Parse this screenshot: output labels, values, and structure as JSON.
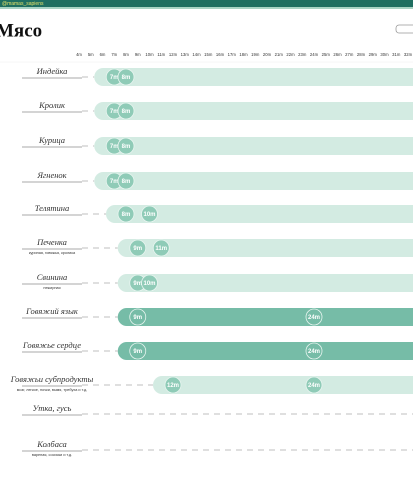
{
  "header": {
    "brand": "@mamas_sapiens",
    "title": "Мясо"
  },
  "axis": {
    "ticks": [
      {
        "value": 4,
        "label": "4m"
      },
      {
        "value": 5,
        "label": "5m"
      },
      {
        "value": 6,
        "label": "6m"
      },
      {
        "value": 7,
        "label": "7m"
      },
      {
        "value": 8,
        "label": "8m"
      },
      {
        "value": 9,
        "label": "9m"
      },
      {
        "value": 10,
        "label": "10m"
      },
      {
        "value": 11,
        "label": "11m"
      },
      {
        "value": 12,
        "label": "12m"
      },
      {
        "value": 13,
        "label": "13m"
      },
      {
        "value": 14,
        "label": "14m"
      },
      {
        "value": 15,
        "label": "15m"
      },
      {
        "value": 16,
        "label": "16m"
      },
      {
        "value": 17,
        "label": "17m"
      },
      {
        "value": 18,
        "label": "18m"
      },
      {
        "value": 19,
        "label": "19m"
      },
      {
        "value": 20,
        "label": "20m"
      },
      {
        "value": 21,
        "label": "21m"
      },
      {
        "value": 22,
        "label": "22m"
      },
      {
        "value": 23,
        "label": "23m"
      },
      {
        "value": 24,
        "label": "24m"
      },
      {
        "value": 25,
        "label": "25m"
      },
      {
        "value": 26,
        "label": "26m"
      },
      {
        "value": 27,
        "label": "27m"
      },
      {
        "value": 28,
        "label": "28m"
      },
      {
        "value": 29,
        "label": "29m"
      },
      {
        "value": 30,
        "label": "30m"
      },
      {
        "value": 31,
        "label": "31m"
      },
      {
        "value": 32,
        "label": "32m"
      }
    ]
  },
  "rows": [
    {
      "label": "Индейка",
      "color": "#d3ebe2",
      "markers": [
        {
          "value": 7,
          "label": "7m"
        },
        {
          "value": 8,
          "label": "8m"
        }
      ]
    },
    {
      "label": "Кролик",
      "color": "#d3ebe2",
      "markers": [
        {
          "value": 7,
          "label": "7m"
        },
        {
          "value": 8,
          "label": "8m"
        }
      ]
    },
    {
      "label": "Курица",
      "color": "#d3ebe2",
      "markers": [
        {
          "value": 7,
          "label": "7m"
        },
        {
          "value": 8,
          "label": "8m"
        }
      ]
    },
    {
      "label": "Ягненок",
      "color": "#d3ebe2",
      "markers": [
        {
          "value": 7,
          "label": "7m"
        },
        {
          "value": 8,
          "label": "8m"
        }
      ]
    },
    {
      "label": "Телятина",
      "color": "#d3ebe2",
      "markers": [
        {
          "value": 8,
          "label": "8m"
        },
        {
          "value": 10,
          "label": "10m"
        }
      ]
    },
    {
      "label": "Печенка",
      "sublabel": "куриная, говяжья, кролика",
      "color": "#d3ebe2",
      "markers": [
        {
          "value": 9,
          "label": "9m"
        },
        {
          "value": 11,
          "label": "11m"
        }
      ]
    },
    {
      "label": "Свинина",
      "sublabel": "нежирная",
      "color": "#d3ebe2",
      "markers": [
        {
          "value": 9,
          "label": "9m"
        },
        {
          "value": 10,
          "label": "10m"
        }
      ]
    },
    {
      "label": "Говяжий язык",
      "color": "#76bca7",
      "markers": [
        {
          "value": 9,
          "label": "9m"
        },
        {
          "value": 24,
          "label": "24m"
        }
      ]
    },
    {
      "label": "Говяжье сердце",
      "color": "#76bca7",
      "markers": [
        {
          "value": 9,
          "label": "9m"
        },
        {
          "value": 24,
          "label": "24m"
        }
      ]
    },
    {
      "label": "Говяжьи субпродукты",
      "sublabel": "мозг, легкое, почки, вымя, требуха и т.д.",
      "color": "#d3ebe2",
      "markers": [
        {
          "value": 12,
          "label": "12m"
        },
        {
          "value": 24,
          "label": "24m"
        }
      ]
    },
    {
      "label": "Утка, гусь",
      "markers": []
    },
    {
      "label": "Колбаса",
      "sublabel": "вареная, сосиски и т.д.",
      "markers": []
    }
  ]
}
